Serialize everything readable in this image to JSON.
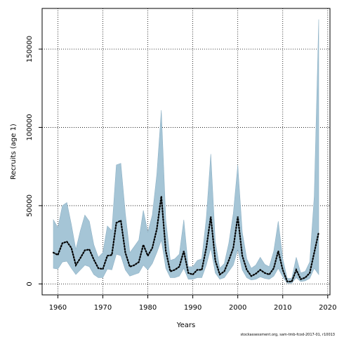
{
  "chart_data": {
    "type": "area",
    "title": "",
    "xlabel": "Years",
    "ylabel": "Recruits (age 1)",
    "xlim": [
      1956.5,
      2020.5
    ],
    "ylim": [
      -7000,
      176000
    ],
    "x_ticks": [
      1960,
      1970,
      1980,
      1990,
      2000,
      2010,
      2020
    ],
    "y_ticks": [
      0,
      50000,
      100000,
      150000
    ],
    "grid": "dotted",
    "legend": "none",
    "footer": "stockassessment.org, sam-tmb-fcod-2017-01, r10013",
    "colors": {
      "band_fill": "#a5c5d6",
      "band_stroke": "#8fb2c6",
      "line": "#000000",
      "axis": "#000000",
      "grid": "#000000"
    },
    "series": [
      {
        "years": [
          1959,
          1960,
          1961,
          1962,
          1963,
          1964,
          1965,
          1966,
          1967,
          1968,
          1969,
          1970,
          1971,
          1972,
          1973,
          1974,
          1975,
          1976,
          1977,
          1978,
          1979,
          1980,
          1981,
          1982,
          1983,
          1984,
          1985,
          1986,
          1987,
          1988,
          1989,
          1990,
          1991,
          1992,
          1993,
          1994,
          1995,
          1996,
          1997,
          1998,
          1999,
          2000,
          2001,
          2002,
          2003,
          2004,
          2005,
          2006,
          2007,
          2008,
          2009,
          2010,
          2011,
          2012,
          2013,
          2014,
          2015,
          2016,
          2017,
          2018
        ],
        "estimate": [
          20000,
          18500,
          26000,
          27000,
          23000,
          12000,
          16500,
          21500,
          22000,
          15500,
          10000,
          9500,
          18000,
          18500,
          39000,
          40500,
          20000,
          11000,
          12000,
          14000,
          25000,
          18000,
          23000,
          35000,
          56000,
          21000,
          8000,
          9000,
          11000,
          21000,
          7000,
          6000,
          9000,
          9000,
          23000,
          43000,
          15000,
          6000,
          8000,
          15000,
          23000,
          43000,
          18000,
          9000,
          5000,
          6500,
          9000,
          7000,
          6000,
          10000,
          21000,
          9000,
          1500,
          1500,
          9000,
          3000,
          4000,
          7000,
          20000,
          33000
        ],
        "lower": [
          10000,
          9500,
          14000,
          14500,
          10000,
          6000,
          9000,
          12000,
          11000,
          6000,
          4000,
          4000,
          9500,
          9000,
          19000,
          18000,
          9000,
          5000,
          6000,
          7000,
          12000,
          9000,
          13000,
          20000,
          28000,
          10000,
          4000,
          4000,
          5000,
          10000,
          3000,
          3000,
          4000,
          4000,
          12000,
          23000,
          7000,
          3000,
          4000,
          8000,
          12000,
          22000,
          9000,
          4000,
          2500,
          3000,
          4500,
          3500,
          3000,
          5000,
          10000,
          4500,
          400,
          500,
          4000,
          1500,
          2000,
          3500,
          10000,
          6000
        ],
        "upper": [
          41000,
          36000,
          50000,
          52000,
          38000,
          22000,
          34000,
          44000,
          40000,
          25000,
          17000,
          20000,
          37000,
          34000,
          76000,
          77000,
          45000,
          20000,
          24000,
          28000,
          47000,
          33000,
          44000,
          70000,
          111000,
          41000,
          15000,
          16000,
          19000,
          41000,
          11000,
          11000,
          15000,
          16000,
          42000,
          83000,
          27000,
          10000,
          13000,
          26000,
          45000,
          76000,
          33000,
          16000,
          10000,
          12000,
          17000,
          12500,
          11000,
          21000,
          40000,
          16000,
          3500,
          3500,
          17000,
          7000,
          8000,
          14000,
          56000,
          169000
        ]
      }
    ]
  }
}
